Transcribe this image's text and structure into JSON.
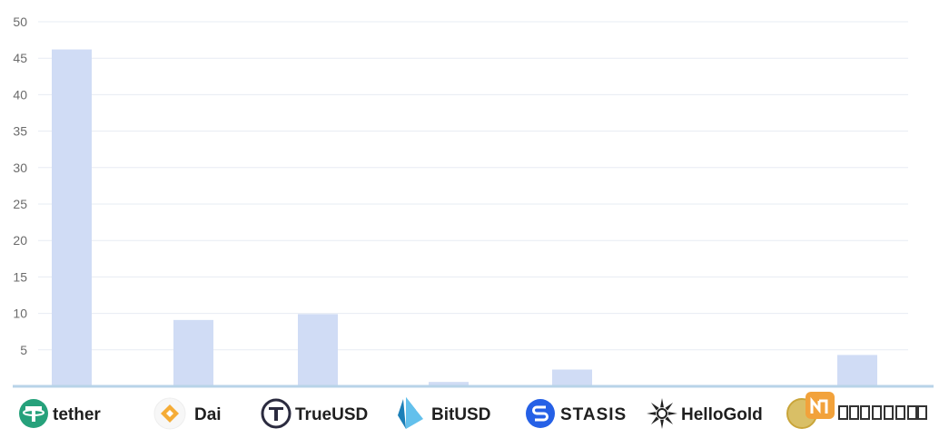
{
  "chart_data": {
    "type": "bar",
    "title": "",
    "xlabel": "",
    "ylabel": "",
    "ylim": [
      0,
      50
    ],
    "yticks": [
      5,
      10,
      15,
      20,
      25,
      30,
      35,
      40,
      45,
      50
    ],
    "grid": true,
    "bar_color": "#d0dcf5",
    "categories": [
      "tether",
      "Dai",
      "TrueUSD",
      "BitUSD",
      "STASIS",
      "HelloGold",
      "Xaurum"
    ],
    "values": [
      46.2,
      9.1,
      9.9,
      0.6,
      2.3,
      0.0,
      4.3
    ]
  },
  "x_axis_logos": [
    {
      "name": "tether",
      "text": "tether",
      "icon": "tether-icon",
      "color": "#26a17b"
    },
    {
      "name": "dai",
      "text": "Dai",
      "icon": "dai-diamond-icon",
      "color": "#f5ac37"
    },
    {
      "name": "trueusd",
      "text": "TrueUSD",
      "icon": "trueusd-t-icon",
      "color": "#2b2b3f"
    },
    {
      "name": "bitusd",
      "text": "BitUSD",
      "icon": "bitusd-crystal-icon",
      "color": "#2a9fd8"
    },
    {
      "name": "stasis",
      "text": "STASIS",
      "icon": "stasis-s-icon",
      "color": "#2560e6"
    },
    {
      "name": "hellogold",
      "text": "HelloGold",
      "icon": "hellogold-star-icon",
      "color": "#222222"
    },
    {
      "name": "xaurum",
      "text": "Xaurum",
      "icon": "xaurum-coin-icon",
      "color": "#c9a53a"
    }
  ],
  "colors": {
    "grid": "#e7ecf3",
    "baseline": "#b8d3e8",
    "tick_text": "#6b6b6b"
  }
}
